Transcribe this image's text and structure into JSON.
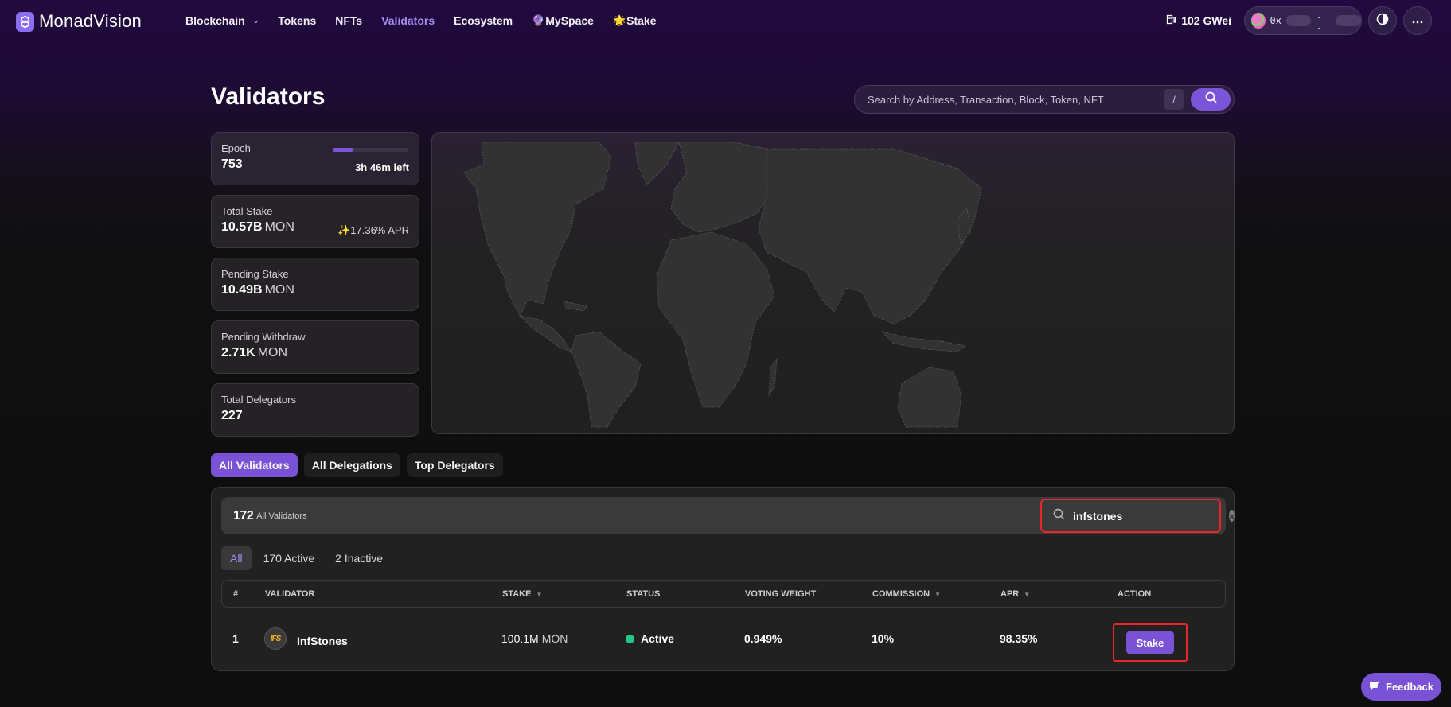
{
  "app": {
    "name": "MonadVision"
  },
  "nav": {
    "links": [
      {
        "label": "Blockchain",
        "has_dropdown": true,
        "active": false
      },
      {
        "label": "Tokens",
        "active": false
      },
      {
        "label": "NFTs",
        "active": false
      },
      {
        "label": "Validators",
        "active": true
      },
      {
        "label": "Ecosystem",
        "active": false
      },
      {
        "label": "MySpace",
        "icon": "crystal-ball-icon",
        "emoji": "🔮",
        "active": false
      },
      {
        "label": "Stake",
        "icon": "star-icon",
        "emoji": "🌟",
        "active": false
      }
    ],
    "gas": {
      "value": "102 GWei",
      "icon": "gas-pump-icon"
    },
    "wallet": {
      "address_prefix": "0x",
      "address_separator": ". ."
    },
    "theme_toggle_icon": "contrast-icon",
    "more_icon": "ellipsis-icon"
  },
  "page": {
    "title": "Validators",
    "search": {
      "placeholder": "Search by Address, Transaction, Block, Token, NFT",
      "shortcut": "/"
    }
  },
  "stats": {
    "epoch": {
      "label": "Epoch",
      "value": "753",
      "time_left": "3h 46m left",
      "progress_pct": 27
    },
    "total_stake": {
      "label": "Total Stake",
      "value": "10.57B",
      "unit": "MON",
      "apr": "✨17.36% APR"
    },
    "pending_stake": {
      "label": "Pending Stake",
      "value": "10.49B",
      "unit": "MON"
    },
    "pending_withdraw": {
      "label": "Pending Withdraw",
      "value": "2.71K",
      "unit": "MON"
    },
    "total_delegators": {
      "label": "Total Delegators",
      "value": "227"
    }
  },
  "tabs": [
    {
      "label": "All Validators",
      "active": true
    },
    {
      "label": "All Delegations",
      "active": false
    },
    {
      "label": "Top Delegators",
      "active": false
    }
  ],
  "table_panel": {
    "count": "172",
    "count_label": "All Validators",
    "filter_value": "infstones",
    "subtabs": [
      {
        "label": "All",
        "active": true
      },
      {
        "label": "170 Active",
        "active": false
      },
      {
        "label": "2 Inactive",
        "active": false
      }
    ],
    "columns": [
      {
        "key": "index",
        "label": "#"
      },
      {
        "key": "validator",
        "label": "VALIDATOR"
      },
      {
        "key": "stake",
        "label": "STAKE",
        "sortable": true
      },
      {
        "key": "status",
        "label": "STATUS"
      },
      {
        "key": "voting_weight",
        "label": "VOTING WEIGHT"
      },
      {
        "key": "commission",
        "label": "COMMISSION",
        "sortable": true
      },
      {
        "key": "apr",
        "label": "APR",
        "sortable": true
      },
      {
        "key": "action",
        "label": "ACTION"
      }
    ],
    "rows": [
      {
        "index": "1",
        "validator": "InfStones",
        "avatar_text": "IFS",
        "stake": "100.1M",
        "stake_unit": "MON",
        "status": "Active",
        "voting_weight": "0.949%",
        "commission": "10%",
        "apr": "98.35%",
        "action": "Stake"
      }
    ]
  },
  "feedback": {
    "label": "Feedback"
  },
  "colors": {
    "accent": "#7a52d6",
    "accent_text": "#a58cf5",
    "status_active": "#22c78a",
    "highlight_box": "#e8262b",
    "nav_bg": "#22093f"
  }
}
